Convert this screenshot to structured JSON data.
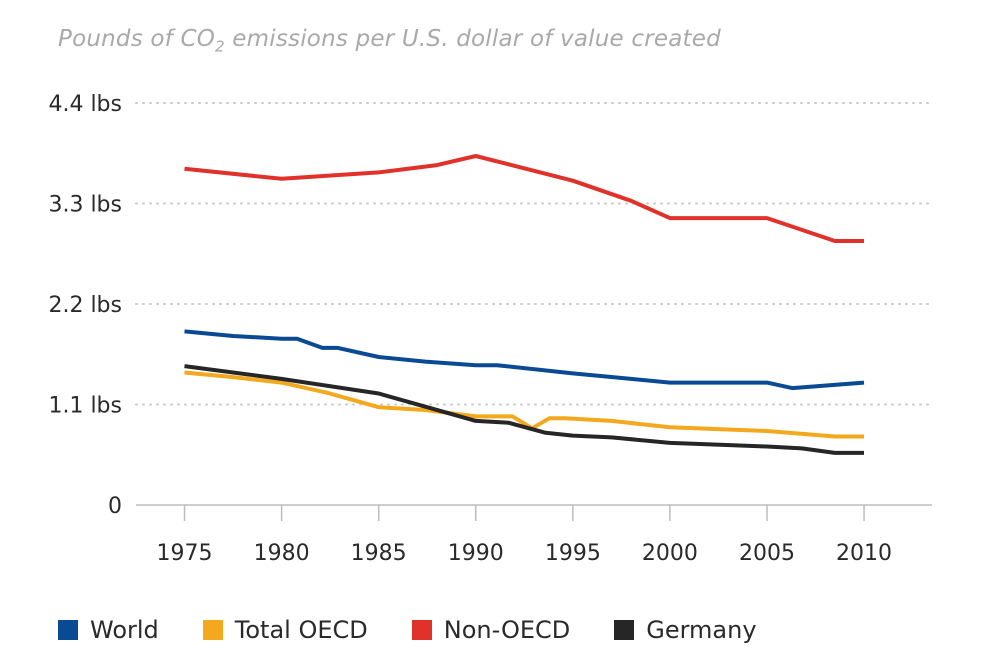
{
  "chart_data": {
    "type": "line",
    "title": "Pounds of CO",
    "title_subscript": "2",
    "title_rest": " emissions per U.S. dollar of value created",
    "xlabel": "",
    "ylabel": "",
    "xlim": [
      1972.5,
      2013.5
    ],
    "ylim": [
      0,
      4.4
    ],
    "x_ticks": [
      1975,
      1980,
      1985,
      1990,
      1995,
      2000,
      2005,
      2010
    ],
    "y_ticks": [
      {
        "value": 0,
        "label": "0"
      },
      {
        "value": 1.1,
        "label": "1.1 lbs"
      },
      {
        "value": 2.2,
        "label": "2.2 lbs"
      },
      {
        "value": 3.3,
        "label": "3.3 lbs"
      },
      {
        "value": 4.4,
        "label": "4.4 lbs"
      }
    ],
    "grid": "horizontal-dotted",
    "legend_position": "bottom",
    "series": [
      {
        "name": "World",
        "color": "#0a4a94",
        "x": [
          1975,
          1977.5,
          1980,
          1980.8,
          1982.1,
          1982.9,
          1985,
          1987.4,
          1990,
          1991.1,
          1995,
          1998,
          2000,
          2005,
          2006.3,
          2010
        ],
        "y": [
          1.9,
          1.85,
          1.82,
          1.82,
          1.72,
          1.72,
          1.62,
          1.57,
          1.53,
          1.53,
          1.44,
          1.38,
          1.34,
          1.34,
          1.28,
          1.34
        ]
      },
      {
        "name": "Total OECD",
        "color": "#f4a81d",
        "x": [
          1975,
          1977.5,
          1980,
          1982.3,
          1985,
          1987.4,
          1990,
          1991.9,
          1992.9,
          1993.8,
          1994.6,
          1997,
          2000,
          2005,
          2008.5,
          2010
        ],
        "y": [
          1.45,
          1.4,
          1.34,
          1.23,
          1.07,
          1.04,
          0.97,
          0.97,
          0.84,
          0.95,
          0.95,
          0.92,
          0.85,
          0.81,
          0.75,
          0.75
        ]
      },
      {
        "name": "Non-OECD",
        "color": "#e0322a",
        "x": [
          1975,
          1980,
          1985,
          1988,
          1990,
          1995,
          1998,
          2000,
          2005,
          2008.5,
          2010
        ],
        "y": [
          3.68,
          3.57,
          3.64,
          3.72,
          3.82,
          3.55,
          3.33,
          3.14,
          3.14,
          2.89,
          2.89
        ]
      },
      {
        "name": "Germany",
        "color": "#262626",
        "x": [
          1975,
          1980,
          1985,
          1987.5,
          1990,
          1991.7,
          1993.6,
          1995,
          1997,
          2000,
          2005,
          2006.8,
          2008.5,
          2010
        ],
        "y": [
          1.52,
          1.38,
          1.22,
          1.07,
          0.92,
          0.9,
          0.79,
          0.76,
          0.74,
          0.68,
          0.64,
          0.62,
          0.57,
          0.57
        ]
      }
    ]
  }
}
